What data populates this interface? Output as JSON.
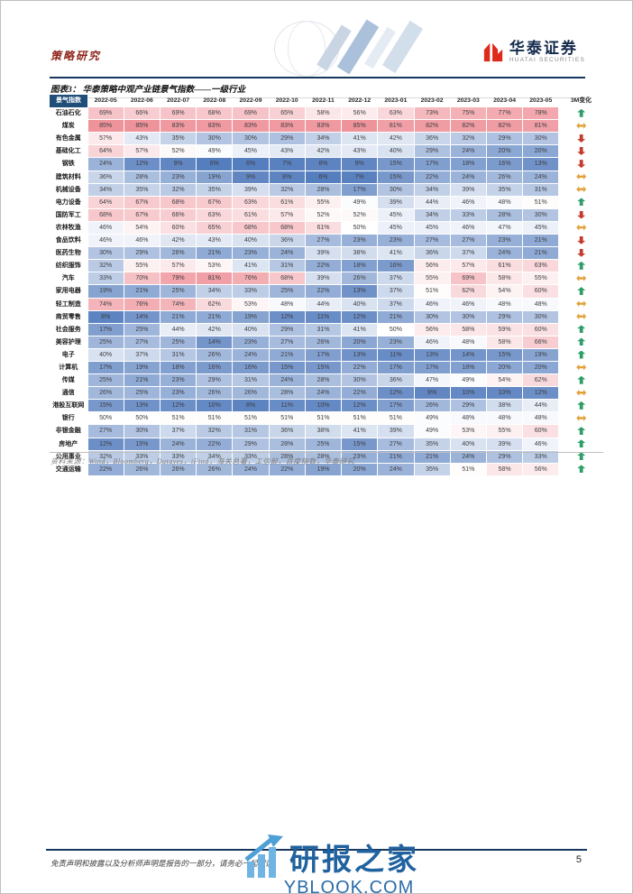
{
  "page": {
    "category_label": "策略研究",
    "brand": {
      "name_cn": "华泰证券",
      "name_en": "HUATAI SECURITIES"
    },
    "figure_title": "图表3：  华泰策略中观产业链景气指数——一级行业",
    "source_note": "资料来源：Wind，Bloomberg，Datayes，iFind，海关总署，工信部，百度指数，华泰研究",
    "footer_disclaimer": "免责声明和披露以及分析师声明是报告的一部分，请务必一起阅读。",
    "page_number": "5",
    "watermark": {
      "title": "研报之家",
      "subtitle": "YBLOOK.COM"
    }
  },
  "chart_data": {
    "type": "heatmap",
    "title": "华泰策略中观产业链景气指数——一级行业",
    "corner_header": "景气指数",
    "change_header": "3M变化",
    "unit": "%",
    "columns": [
      "2022-05",
      "2022-06",
      "2022-07",
      "2022-08",
      "2022-09",
      "2022-10",
      "2022-11",
      "2022-12",
      "2023-01",
      "2023-02",
      "2023-03",
      "2023-04",
      "2023-05"
    ],
    "color_scale": {
      "low_0pct": "#3e6cb5",
      "mid_50pct": "#ffffff",
      "high_100pct": "#e8646f"
    },
    "change_colors": {
      "up": "#2e9e68",
      "down": "#c43b2e",
      "flat": "#e3a23c"
    },
    "rows": [
      {
        "label": "石油石化",
        "values": [
          69,
          66,
          69,
          68,
          69,
          65,
          58,
          56,
          63,
          73,
          75,
          77,
          78
        ],
        "change": "up"
      },
      {
        "label": "煤炭",
        "values": [
          85,
          85,
          83,
          83,
          83,
          83,
          83,
          85,
          81,
          82,
          82,
          82,
          81
        ],
        "change": "flat"
      },
      {
        "label": "有色金属",
        "values": [
          57,
          43,
          35,
          30,
          30,
          29,
          34,
          41,
          42,
          36,
          32,
          29,
          30
        ],
        "change": "down"
      },
      {
        "label": "基础化工",
        "values": [
          64,
          57,
          52,
          49,
          45,
          43,
          42,
          43,
          40,
          29,
          24,
          20,
          20
        ],
        "change": "down"
      },
      {
        "label": "钢铁",
        "values": [
          24,
          12,
          9,
          6,
          6,
          7,
          8,
          9,
          15,
          17,
          18,
          16,
          13
        ],
        "change": "down"
      },
      {
        "label": "建筑材料",
        "values": [
          36,
          28,
          23,
          19,
          9,
          8,
          6,
          7,
          15,
          22,
          24,
          26,
          24
        ],
        "change": "flat"
      },
      {
        "label": "机械设备",
        "values": [
          34,
          35,
          32,
          35,
          39,
          32,
          28,
          17,
          30,
          34,
          39,
          35,
          31
        ],
        "change": "flat"
      },
      {
        "label": "电力设备",
        "values": [
          64,
          67,
          68,
          67,
          63,
          61,
          55,
          49,
          39,
          44,
          46,
          48,
          51
        ],
        "change": "up"
      },
      {
        "label": "国防军工",
        "values": [
          68,
          67,
          66,
          63,
          61,
          57,
          52,
          52,
          45,
          34,
          33,
          28,
          30
        ],
        "change": "down"
      },
      {
        "label": "农林牧渔",
        "values": [
          46,
          54,
          60,
          65,
          68,
          68,
          61,
          50,
          45,
          45,
          46,
          47,
          45
        ],
        "change": "flat"
      },
      {
        "label": "食品饮料",
        "values": [
          46,
          46,
          42,
          43,
          40,
          36,
          27,
          23,
          23,
          27,
          27,
          23,
          21
        ],
        "change": "down"
      },
      {
        "label": "医药生物",
        "values": [
          30,
          29,
          26,
          21,
          23,
          24,
          39,
          38,
          41,
          36,
          37,
          24,
          21
        ],
        "change": "down"
      },
      {
        "label": "纺织服饰",
        "values": [
          32,
          55,
          57,
          53,
          41,
          31,
          22,
          18,
          16,
          56,
          57,
          61,
          63
        ],
        "change": "up"
      },
      {
        "label": "汽车",
        "values": [
          33,
          70,
          79,
          81,
          76,
          68,
          39,
          26,
          37,
          55,
          69,
          58,
          55
        ],
        "change": "flat"
      },
      {
        "label": "家用电器",
        "values": [
          19,
          21,
          25,
          34,
          33,
          25,
          22,
          13,
          37,
          51,
          62,
          54,
          60
        ],
        "change": "up"
      },
      {
        "label": "轻工制造",
        "values": [
          74,
          76,
          74,
          62,
          53,
          48,
          44,
          40,
          37,
          46,
          46,
          48,
          48
        ],
        "change": "flat"
      },
      {
        "label": "商贸零售",
        "values": [
          8,
          14,
          21,
          21,
          19,
          12,
          11,
          12,
          21,
          30,
          30,
          29,
          30
        ],
        "change": "flat"
      },
      {
        "label": "社会服务",
        "values": [
          17,
          25,
          44,
          42,
          40,
          29,
          31,
          41,
          50,
          56,
          58,
          59,
          60
        ],
        "change": "up"
      },
      {
        "label": "美容护理",
        "values": [
          25,
          27,
          25,
          14,
          23,
          27,
          26,
          20,
          23,
          46,
          48,
          58,
          66
        ],
        "change": "up"
      },
      {
        "label": "电子",
        "values": [
          40,
          37,
          31,
          26,
          24,
          21,
          17,
          13,
          11,
          13,
          14,
          15,
          19
        ],
        "change": "up"
      },
      {
        "label": "计算机",
        "values": [
          17,
          19,
          18,
          16,
          16,
          15,
          15,
          22,
          17,
          17,
          18,
          20,
          20
        ],
        "change": "flat"
      },
      {
        "label": "传媒",
        "values": [
          25,
          21,
          23,
          29,
          31,
          24,
          28,
          30,
          36,
          47,
          49,
          54,
          62
        ],
        "change": "up"
      },
      {
        "label": "通信",
        "values": [
          26,
          25,
          23,
          26,
          26,
          28,
          24,
          22,
          12,
          9,
          10,
          10,
          12
        ],
        "change": "flat"
      },
      {
        "label": "港股互联网",
        "values": [
          15,
          13,
          12,
          10,
          8,
          11,
          10,
          12,
          17,
          26,
          29,
          38,
          44
        ],
        "change": "up"
      },
      {
        "label": "银行",
        "values": [
          50,
          50,
          51,
          51,
          51,
          51,
          51,
          51,
          51,
          49,
          48,
          48,
          48
        ],
        "change": "flat"
      },
      {
        "label": "非银金融",
        "values": [
          27,
          30,
          37,
          32,
          31,
          36,
          38,
          41,
          39,
          49,
          53,
          55,
          60
        ],
        "change": "up"
      },
      {
        "label": "房地产",
        "values": [
          12,
          15,
          24,
          22,
          29,
          28,
          25,
          15,
          27,
          35,
          40,
          39,
          46
        ],
        "change": "up"
      },
      {
        "label": "公用事业",
        "values": [
          32,
          33,
          33,
          34,
          33,
          28,
          28,
          23,
          21,
          21,
          24,
          29,
          33
        ],
        "change": "up"
      },
      {
        "label": "交通运输",
        "values": [
          22,
          26,
          26,
          26,
          24,
          22,
          19,
          20,
          24,
          35,
          51,
          58,
          56
        ],
        "change": "up"
      }
    ]
  }
}
